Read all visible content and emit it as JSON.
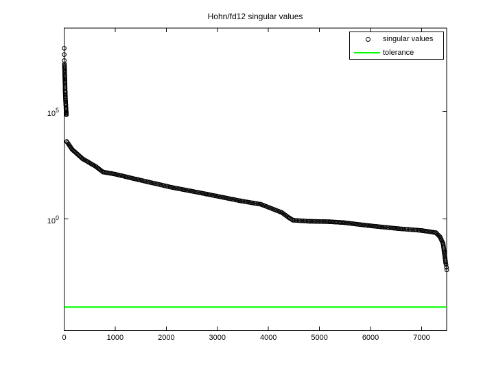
{
  "chart_data": {
    "type": "scatter",
    "title": "Hohn/fd12 singular values",
    "y_scale": "log",
    "grid": false,
    "xlim": [
      0,
      7490
    ],
    "ylim_log10": [
      -5.15,
      8.85
    ],
    "x_ticks": [
      0,
      1000,
      2000,
      3000,
      4000,
      5000,
      6000,
      7000
    ],
    "y_ticks": [
      {
        "base": "10",
        "exp": "5",
        "log10": 5
      },
      {
        "base": "10",
        "exp": "0",
        "log10": 0
      }
    ],
    "legend": {
      "position": "top-right",
      "entries": [
        "singular values",
        "tolerance"
      ]
    },
    "series": [
      {
        "name": "singular values",
        "type": "scatter",
        "marker": "open-circle",
        "color": "#000000",
        "head_discrete_log10": [
          [
            1,
            7.93
          ],
          [
            2,
            7.64
          ],
          [
            3,
            7.36
          ]
        ],
        "head_anchors_log10": [
          [
            5,
            7.2
          ],
          [
            8,
            6.97
          ],
          [
            12,
            6.66
          ],
          [
            16,
            6.34
          ],
          [
            20,
            5.92
          ],
          [
            24,
            5.7
          ],
          [
            28,
            5.48
          ],
          [
            32,
            5.32
          ],
          [
            36,
            5.13
          ],
          [
            40,
            4.97
          ],
          [
            44,
            4.84
          ]
        ],
        "main_anchors_log10": [
          [
            50,
            3.6
          ],
          [
            160,
            3.22
          ],
          [
            360,
            2.8
          ],
          [
            630,
            2.42
          ],
          [
            760,
            2.18
          ],
          [
            1000,
            2.08
          ],
          [
            1440,
            1.83
          ],
          [
            2100,
            1.47
          ],
          [
            2780,
            1.16
          ],
          [
            3450,
            0.84
          ],
          [
            3850,
            0.68
          ],
          [
            4260,
            0.3
          ],
          [
            4400,
            0.06
          ],
          [
            4480,
            -0.06
          ],
          [
            4800,
            -0.11
          ],
          [
            5200,
            -0.13
          ],
          [
            5470,
            -0.17
          ],
          [
            6000,
            -0.32
          ],
          [
            6540,
            -0.45
          ],
          [
            7010,
            -0.54
          ],
          [
            7280,
            -0.64
          ],
          [
            7360,
            -0.83
          ],
          [
            7420,
            -1.15
          ],
          [
            7440,
            -1.5
          ],
          [
            7460,
            -1.82
          ],
          [
            7470,
            -2.04
          ]
        ],
        "tail_discrete_log10": [
          [
            7478,
            -2.12
          ],
          [
            7486,
            -2.25
          ],
          [
            7493,
            -2.37
          ]
        ]
      },
      {
        "name": "tolerance",
        "type": "hline",
        "color": "#00ff00",
        "value": 8e-05
      }
    ],
    "colors": {
      "marker": "#000000",
      "tolerance": "#00ff00",
      "axes": "#000000",
      "background": "#ffffff"
    }
  }
}
